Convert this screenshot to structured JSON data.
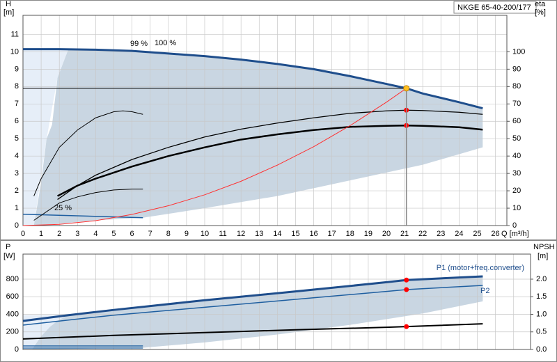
{
  "chart_data": [
    {
      "type": "line",
      "title": "NKGE 65-40-200/177",
      "ylabel": "H",
      "yunit": "[m]",
      "y2label": "eta",
      "y2unit": "[%]",
      "xlabel": "Q [m³/h]",
      "xlim": [
        0,
        26.63
      ],
      "ylim": [
        0,
        12.1
      ],
      "y2lim": [
        0,
        121
      ],
      "xticks": [
        0,
        1,
        2,
        3,
        4,
        5,
        6,
        7,
        8,
        9,
        10,
        11,
        12,
        13,
        14,
        15,
        16,
        17,
        18,
        19,
        20,
        21,
        22,
        23,
        24,
        25,
        26
      ],
      "yticks": [
        0,
        1,
        2,
        3,
        4,
        5,
        6,
        7,
        8,
        9,
        10,
        11
      ],
      "y2ticks": [
        0,
        10,
        20,
        30,
        40,
        50,
        60,
        70,
        80,
        90,
        100
      ],
      "grid": true,
      "xtick_labels": true,
      "annotations": [
        "99 %",
        "100 %",
        "25 %"
      ],
      "areas": [
        {
          "color": "#e6eef8",
          "x": [
            0,
            0.6,
            1.3,
            1.9,
            2.5,
            0
          ],
          "y": [
            0,
            0,
            5,
            8.5,
            10.15,
            10.15
          ]
        },
        {
          "color": "#c9d6e2",
          "x": [
            0.6,
            1,
            1.3,
            1.6,
            1.9,
            2.5,
            4,
            6,
            8,
            10,
            12,
            14,
            16,
            18,
            20,
            21.1,
            22,
            24,
            25.3,
            25.3,
            22,
            18,
            14,
            10,
            6.6,
            4,
            2,
            0.6
          ],
          "y": [
            0,
            2.5,
            5,
            5.8,
            8.5,
            10.15,
            10.12,
            10.05,
            9.9,
            9.75,
            9.55,
            9.3,
            9.0,
            8.6,
            8.15,
            7.9,
            7.6,
            7.1,
            6.75,
            4.5,
            3.5,
            2.6,
            1.7,
            1.0,
            0.45,
            0.3,
            0.1,
            0
          ]
        }
      ],
      "series": [
        {
          "color": "#1f4e8c",
          "width": 3,
          "x": [
            0,
            2,
            4,
            6,
            8,
            10,
            12,
            14,
            16,
            18,
            20,
            21.1,
            22,
            24,
            25.3
          ],
          "values": [
            10.15,
            10.15,
            10.12,
            10.05,
            9.9,
            9.75,
            9.55,
            9.3,
            9.0,
            8.6,
            8.15,
            7.9,
            7.6,
            7.1,
            6.75
          ]
        },
        {
          "color": "#1f5fa0",
          "width": 1.5,
          "x": [
            0,
            6.6
          ],
          "values": [
            0.65,
            0.45
          ]
        },
        {
          "color": "#000000",
          "width": 2.5,
          "axis": "y2",
          "x": [
            1.9,
            3,
            4,
            6,
            8,
            10,
            12,
            14,
            16,
            18,
            20,
            21.1,
            22,
            24,
            25.3
          ],
          "values": [
            17,
            23,
            27,
            34,
            40,
            45,
            49.5,
            52.5,
            55,
            56.8,
            57.4,
            57.6,
            57.4,
            56.6,
            55.2
          ]
        },
        {
          "color": "#000000",
          "width": 1.3,
          "axis": "y2",
          "x": [
            1.9,
            3,
            4,
            6,
            8,
            10,
            12,
            14,
            16,
            18,
            20,
            21.1,
            22,
            24,
            25.3
          ],
          "values": [
            15,
            23,
            29,
            38,
            45,
            51,
            55.5,
            59,
            62,
            64.6,
            66,
            66.4,
            66.2,
            65.2,
            64
          ]
        },
        {
          "color": "#000000",
          "width": 1,
          "axis": "y2",
          "x": [
            0.6,
            1,
            2,
            3,
            4,
            5,
            5.5,
            6,
            6.6
          ],
          "values": [
            17,
            27,
            45,
            55,
            62,
            65.5,
            66,
            65.5,
            64
          ]
        },
        {
          "color": "#000000",
          "width": 1,
          "axis": "y2",
          "x": [
            0.6,
            2,
            3,
            4,
            5,
            6,
            6.6
          ],
          "values": [
            3,
            13,
            16.5,
            19,
            20.5,
            21,
            21
          ]
        },
        {
          "color": "#ff3030",
          "width": 1,
          "x": [
            0,
            2,
            4,
            6,
            8,
            10,
            12,
            14,
            16,
            18,
            20,
            21.1
          ],
          "values": [
            0,
            0.07,
            0.28,
            0.64,
            1.14,
            1.77,
            2.55,
            3.48,
            4.54,
            5.75,
            7.1,
            7.9
          ]
        },
        {
          "type": "points",
          "color": "#ff0000",
          "axis": "y2",
          "x": [
            21.1,
            21.1
          ],
          "values": [
            66.4,
            57.6
          ]
        }
      ],
      "duty_point": {
        "x": 21.1,
        "y": 7.9,
        "color": "#ffc020"
      }
    },
    {
      "type": "line",
      "ylabel": "P",
      "yunit": "[W]",
      "y2label": "NPSH",
      "y2unit": "[m]",
      "xlim": [
        0,
        27.93
      ],
      "ylim": [
        0,
        1085
      ],
      "y2lim": [
        0,
        2.7125
      ],
      "xticks": [
        0,
        1,
        2,
        3,
        4,
        5,
        6,
        7,
        8,
        9,
        10,
        11,
        12,
        13,
        14,
        15,
        16,
        17,
        18,
        19,
        20,
        21,
        22,
        23,
        24,
        25,
        26,
        27
      ],
      "yticks": [
        0,
        200,
        400,
        600,
        800
      ],
      "y2ticks": [
        {
          "value": 0,
          "label": "0.0"
        },
        {
          "value": 0.5,
          "label": "0.5"
        },
        {
          "value": 1,
          "label": "1.0"
        },
        {
          "value": 1.5,
          "label": "1.5"
        },
        {
          "value": 2,
          "label": "2.0"
        }
      ],
      "grid": true,
      "xtick_labels": false,
      "areas": [
        {
          "color": "#e6eef8",
          "x": [
            0,
            0.5,
            1,
            1.5,
            2,
            2.5,
            0
          ],
          "y": [
            0,
            0,
            150,
            260,
            340,
            390,
            390
          ]
        },
        {
          "color": "#c9d6e2",
          "x": [
            0.5,
            1,
            1.5,
            2,
            2.5,
            5,
            10,
            15,
            20,
            21.1,
            25.3,
            25.3,
            22,
            18,
            14,
            10,
            6.6,
            0.5
          ],
          "y": [
            0,
            150,
            260,
            340,
            390,
            450,
            560,
            660,
            765,
            790,
            832,
            547,
            410,
            280,
            170,
            80,
            20,
            0
          ]
        }
      ],
      "series": [
        {
          "name": "P1 (motor+freq.converter)",
          "color": "#1f4e8c",
          "width": 3,
          "x": [
            0,
            2.5,
            5,
            10,
            15,
            20,
            21.1,
            25.3
          ],
          "values": [
            325,
            390,
            450,
            560,
            660,
            765,
            790,
            832
          ]
        },
        {
          "name": "P2",
          "color": "#1f5fa0",
          "width": 1.5,
          "x": [
            0,
            2.5,
            5,
            10,
            15,
            20,
            21.1,
            25.3
          ],
          "values": [
            277,
            335,
            390,
            480,
            570,
            660,
            681,
            729
          ]
        },
        {
          "color": "#1f5fa0",
          "width": 1.3,
          "x": [
            0,
            6.6
          ],
          "values": [
            40,
            40
          ]
        },
        {
          "color": "#1f5fa0",
          "width": 1.3,
          "x": [
            0,
            6.6
          ],
          "values": [
            16,
            16
          ]
        },
        {
          "color": "#000000",
          "width": 2,
          "axis": "y2",
          "x": [
            0,
            5,
            10,
            15,
            20,
            21.1,
            25.3
          ],
          "values": [
            0.3,
            0.4,
            0.48,
            0.56,
            0.63,
            0.65,
            0.73
          ]
        },
        {
          "type": "points",
          "color": "#ff0000",
          "x": [
            21.1,
            21.1
          ],
          "values": [
            790,
            681
          ]
        },
        {
          "type": "points",
          "color": "#ff0000",
          "axis": "y2",
          "x": [
            21.1
          ],
          "values": [
            0.65
          ]
        }
      ]
    }
  ]
}
